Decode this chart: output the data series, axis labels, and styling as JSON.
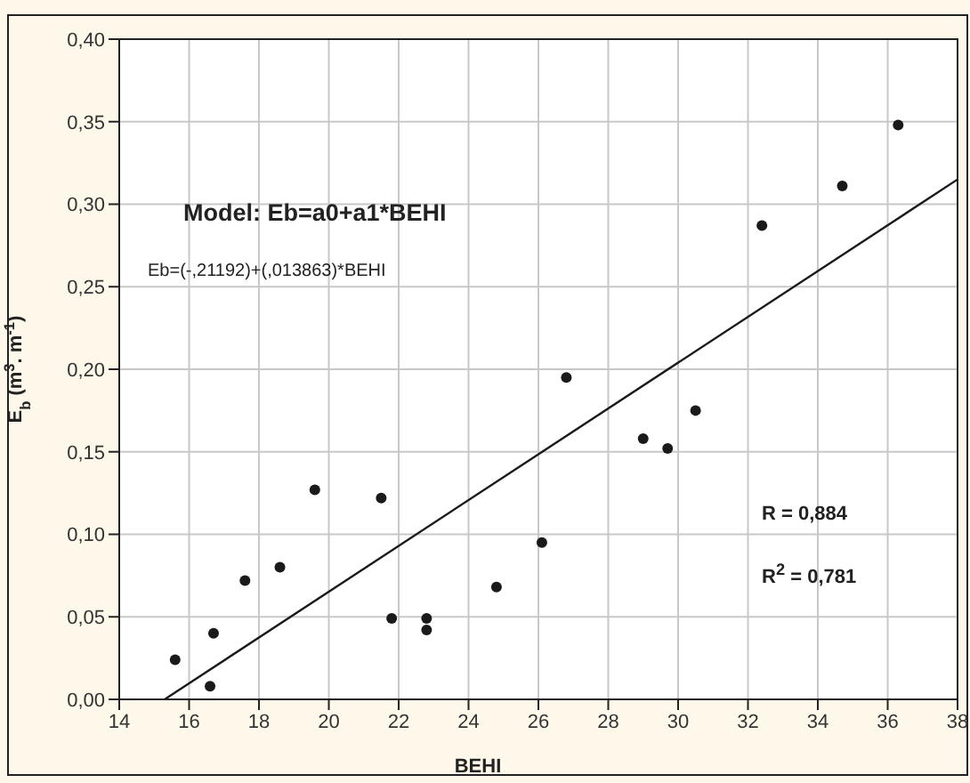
{
  "chart_data": {
    "type": "scatter",
    "xlabel": "BEHI",
    "ylabel": "E$_{b}$  (m$^{3}$. m$^{-1}$)",
    "xlim": [
      14,
      38
    ],
    "xticks": [
      14,
      16,
      18,
      20,
      22,
      24,
      26,
      28,
      30,
      32,
      34,
      36,
      38
    ],
    "ylim": [
      0,
      0.4
    ],
    "yticks": [
      {
        "value": 0,
        "label": "0,00"
      },
      {
        "value": 0.05,
        "label": "0,05"
      },
      {
        "value": 0.1,
        "label": "0,10"
      },
      {
        "value": 0.15,
        "label": "0,15"
      },
      {
        "value": 0.2,
        "label": "0,20"
      },
      {
        "value": 0.25,
        "label": "0,25"
      },
      {
        "value": 0.3,
        "label": "0,30"
      },
      {
        "value": 0.35,
        "label": "0,35"
      },
      {
        "value": 0.4,
        "label": "0,40"
      }
    ],
    "grid": true,
    "marker": "circle",
    "annotations": [
      "Model:  Eb=a0+a1*BEHI",
      "Eb=(-,21192)+(,013863)*BEHI",
      "R =  0,884",
      "R$^{2}$ =  0,781"
    ],
    "series": [
      {
        "color": "#1a1a1a",
        "x": [
          15.6,
          16.6,
          16.7,
          17.6,
          18.6,
          19.6,
          21.5,
          21.8,
          22.8,
          22.8,
          24.8,
          26.1,
          26.8,
          29.0,
          29.7,
          30.5,
          32.4,
          34.7,
          36.3
        ],
        "values": [
          0.024,
          0.008,
          0.04,
          0.072,
          0.08,
          0.127,
          0.122,
          0.049,
          0.049,
          0.042,
          0.068,
          0.095,
          0.195,
          0.158,
          0.152,
          0.175,
          0.287,
          0.311,
          0.348
        ]
      },
      {
        "type": "line",
        "marker": "none",
        "color": "#1a1a1a",
        "x": [
          15.3,
          38
        ],
        "values": [
          0,
          0.315
        ]
      }
    ]
  }
}
